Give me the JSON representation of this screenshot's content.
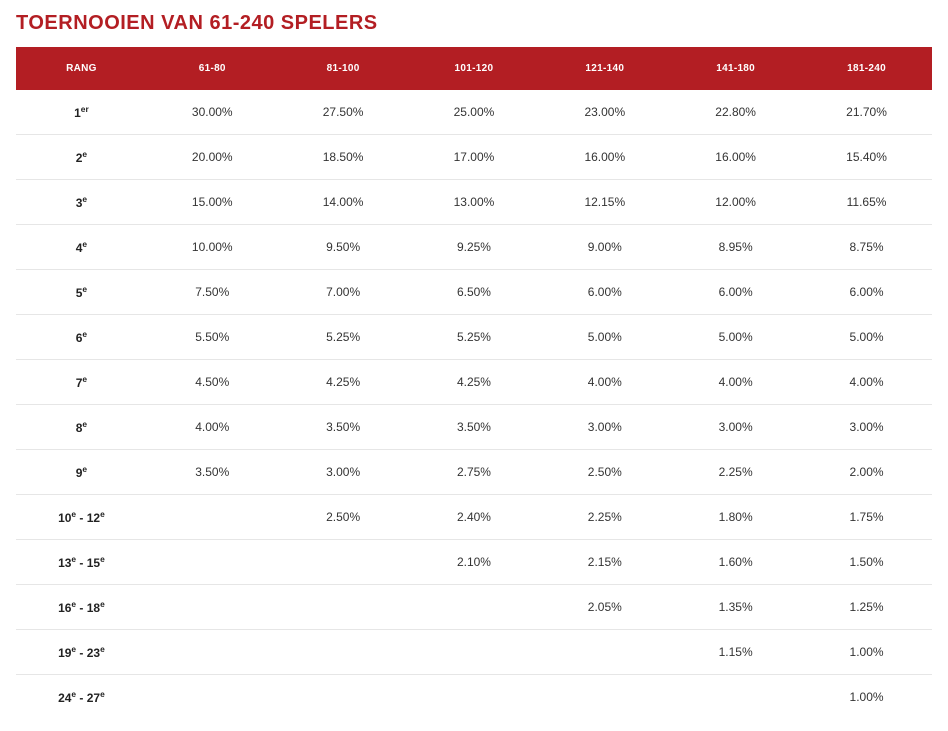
{
  "title": "TOERNOOIEN VAN 61-240 SPELERS",
  "colors": {
    "accent": "#b31e23",
    "header_text": "#ffffff",
    "body_text": "#333333",
    "row_border": "#e6e6e6",
    "background": "#ffffff"
  },
  "typography": {
    "title_fontsize": 20,
    "header_fontsize": 10,
    "cell_fontsize": 12,
    "title_weight": 700,
    "rank_weight": 700
  },
  "table": {
    "type": "table",
    "columns": [
      "RANG",
      "61-80",
      "81-100",
      "101-120",
      "121-140",
      "141-180",
      "181-240"
    ],
    "rows": [
      {
        "rank_html": "1<sup>er</sup>",
        "cells": [
          "30.00%",
          "27.50%",
          "25.00%",
          "23.00%",
          "22.80%",
          "21.70%"
        ]
      },
      {
        "rank_html": "2<sup>e</sup>",
        "cells": [
          "20.00%",
          "18.50%",
          "17.00%",
          "16.00%",
          "16.00%",
          "15.40%"
        ]
      },
      {
        "rank_html": "3<sup>e</sup>",
        "cells": [
          "15.00%",
          "14.00%",
          "13.00%",
          "12.15%",
          "12.00%",
          "11.65%"
        ]
      },
      {
        "rank_html": "4<sup>e</sup>",
        "cells": [
          "10.00%",
          "9.50%",
          "9.25%",
          "9.00%",
          "8.95%",
          "8.75%"
        ]
      },
      {
        "rank_html": "5<sup>e</sup>",
        "cells": [
          "7.50%",
          "7.00%",
          "6.50%",
          "6.00%",
          "6.00%",
          "6.00%"
        ]
      },
      {
        "rank_html": "6<sup>e</sup>",
        "cells": [
          "5.50%",
          "5.25%",
          "5.25%",
          "5.00%",
          "5.00%",
          "5.00%"
        ]
      },
      {
        "rank_html": "7<sup>e</sup>",
        "cells": [
          "4.50%",
          "4.25%",
          "4.25%",
          "4.00%",
          "4.00%",
          "4.00%"
        ]
      },
      {
        "rank_html": "8<sup>e</sup>",
        "cells": [
          "4.00%",
          "3.50%",
          "3.50%",
          "3.00%",
          "3.00%",
          "3.00%"
        ]
      },
      {
        "rank_html": "9<sup>e</sup>",
        "cells": [
          "3.50%",
          "3.00%",
          "2.75%",
          "2.50%",
          "2.25%",
          "2.00%"
        ]
      },
      {
        "rank_html": "10<sup>e</sup> - 12<sup>e</sup>",
        "cells": [
          "",
          "2.50%",
          "2.40%",
          "2.25%",
          "1.80%",
          "1.75%"
        ]
      },
      {
        "rank_html": "13<sup>e</sup> - 15<sup>e</sup>",
        "cells": [
          "",
          "",
          "2.10%",
          "2.15%",
          "1.60%",
          "1.50%"
        ]
      },
      {
        "rank_html": "16<sup>e</sup> - 18<sup>e</sup>",
        "cells": [
          "",
          "",
          "",
          "2.05%",
          "1.35%",
          "1.25%"
        ]
      },
      {
        "rank_html": "19<sup>e</sup> - 23<sup>e</sup>",
        "cells": [
          "",
          "",
          "",
          "",
          "1.15%",
          "1.00%"
        ]
      },
      {
        "rank_html": "24<sup>e</sup> - 27<sup>e</sup>",
        "cells": [
          "",
          "",
          "",
          "",
          "",
          "1.00%"
        ]
      }
    ]
  }
}
